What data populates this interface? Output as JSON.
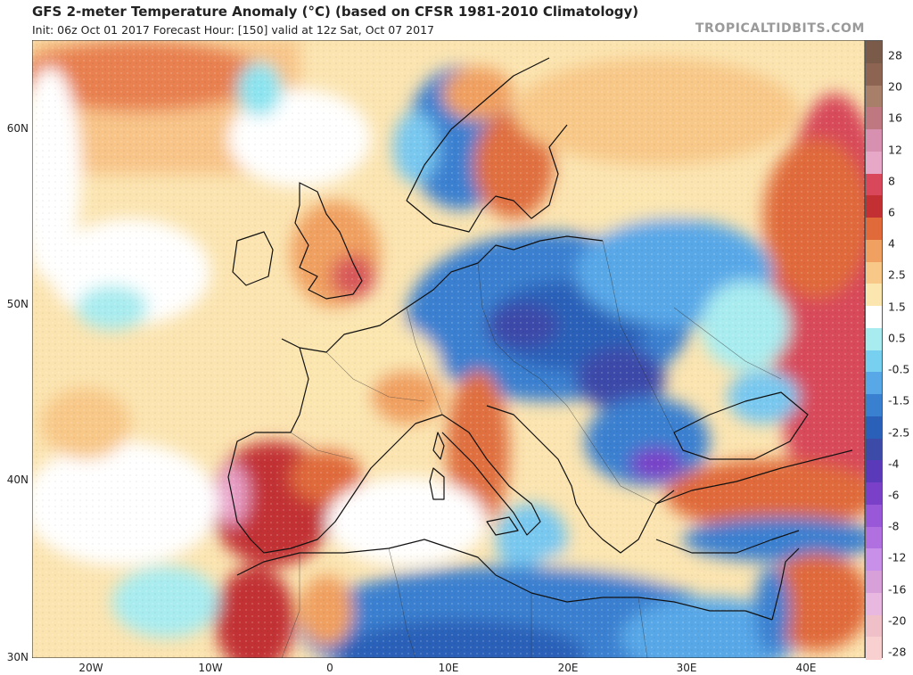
{
  "title": "GFS 2-meter Temperature Anomaly (°C) (based on CFSR 1981-2010 Climatology)",
  "subtitle": "Init: 06z Oct 01 2017   Forecast Hour: [150]   valid at 12z Sat, Oct 07 2017",
  "brand": "TROPICALTIDBITS.COM",
  "lat_labels": [
    "60N",
    "50N",
    "40N",
    "30N"
  ],
  "lon_labels": [
    "20W",
    "10W",
    "0",
    "10E",
    "20E",
    "30E",
    "40E"
  ],
  "colorbar": {
    "labels": [
      "28",
      "20",
      "16",
      "12",
      "8",
      "6",
      "4",
      "2.5",
      "1.5",
      "0.5",
      "-0.5",
      "-1.5",
      "-2.5",
      "-4",
      "-6",
      "-8",
      "-12",
      "-16",
      "-20",
      "-28"
    ],
    "colors": [
      "#7a5a48",
      "#8d6452",
      "#a8806a",
      "#c07880",
      "#d890b0",
      "#e7a8c8",
      "#d8485a",
      "#c23034",
      "#e06a3a",
      "#f0a060",
      "#f8c888",
      "#fbe6b0",
      "#ffffff",
      "#a8ecf0",
      "#78d0f0",
      "#58a8e8",
      "#3a80d0",
      "#2a60b8",
      "#3c4aa8",
      "#5a3ab8",
      "#7a40c8",
      "#9858d8",
      "#b070e0",
      "#c890e8",
      "#d8a0d8",
      "#e8b8e0",
      "#f0c0c8",
      "#f8d0d0"
    ]
  }
}
